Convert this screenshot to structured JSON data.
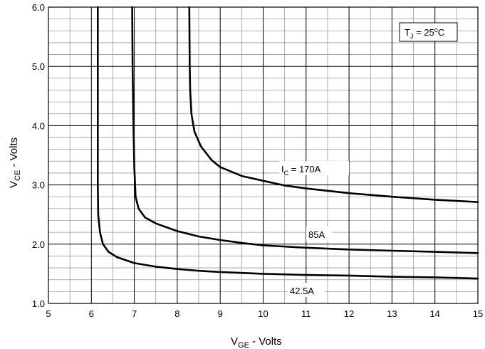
{
  "chart_data": {
    "type": "line",
    "xlabel": {
      "main": "V",
      "sub": "GE",
      "suffix": " - Volts"
    },
    "ylabel": {
      "main": "V",
      "sub": "CE",
      "suffix": " - Volts"
    },
    "xlim": [
      5,
      15
    ],
    "ylim": [
      1.0,
      6.0
    ],
    "x_ticks": [
      "5",
      "6",
      "7",
      "8",
      "9",
      "10",
      "11",
      "12",
      "13",
      "14",
      "15"
    ],
    "y_ticks": [
      "1.0",
      "2.0",
      "3.0",
      "4.0",
      "5.0",
      "6.0"
    ],
    "grid": {
      "major": true,
      "minor": true
    },
    "condition_label": {
      "main": "T",
      "sub": "J",
      "rest": " = 25",
      "sup": "o",
      "end": "C"
    },
    "series": [
      {
        "name": "42.5A",
        "label_main": "42.5A",
        "points": [
          [
            6.15,
            6.0
          ],
          [
            6.15,
            5.0
          ],
          [
            6.15,
            4.0
          ],
          [
            6.15,
            3.0
          ],
          [
            6.16,
            2.5
          ],
          [
            6.2,
            2.2
          ],
          [
            6.27,
            2.0
          ],
          [
            6.4,
            1.87
          ],
          [
            6.6,
            1.78
          ],
          [
            7.0,
            1.68
          ],
          [
            7.5,
            1.62
          ],
          [
            8.0,
            1.58
          ],
          [
            8.5,
            1.55
          ],
          [
            9.0,
            1.53
          ],
          [
            10.0,
            1.5
          ],
          [
            11.0,
            1.48
          ],
          [
            12.0,
            1.47
          ],
          [
            13.0,
            1.45
          ],
          [
            14.0,
            1.44
          ],
          [
            15.0,
            1.42
          ]
        ]
      },
      {
        "name": "85A",
        "label_main": "85A",
        "points": [
          [
            6.95,
            6.0
          ],
          [
            6.96,
            5.0
          ],
          [
            6.98,
            4.0
          ],
          [
            7.0,
            3.3
          ],
          [
            7.03,
            2.8
          ],
          [
            7.1,
            2.6
          ],
          [
            7.25,
            2.45
          ],
          [
            7.5,
            2.35
          ],
          [
            8.0,
            2.22
          ],
          [
            8.5,
            2.13
          ],
          [
            9.0,
            2.07
          ],
          [
            9.5,
            2.02
          ],
          [
            10.0,
            1.98
          ],
          [
            11.0,
            1.94
          ],
          [
            12.0,
            1.91
          ],
          [
            13.0,
            1.89
          ],
          [
            14.0,
            1.87
          ],
          [
            15.0,
            1.85
          ]
        ]
      },
      {
        "name": "170A",
        "label_prefix": "I",
        "label_sub": "C",
        "label_main": " = 170A",
        "points": [
          [
            8.28,
            6.0
          ],
          [
            8.29,
            5.0
          ],
          [
            8.3,
            4.6
          ],
          [
            8.33,
            4.2
          ],
          [
            8.4,
            3.9
          ],
          [
            8.55,
            3.65
          ],
          [
            8.8,
            3.42
          ],
          [
            9.0,
            3.3
          ],
          [
            9.5,
            3.15
          ],
          [
            10.0,
            3.07
          ],
          [
            10.5,
            2.99
          ],
          [
            11.0,
            2.94
          ],
          [
            12.0,
            2.86
          ],
          [
            13.0,
            2.8
          ],
          [
            14.0,
            2.75
          ],
          [
            15.0,
            2.71
          ]
        ]
      }
    ]
  }
}
